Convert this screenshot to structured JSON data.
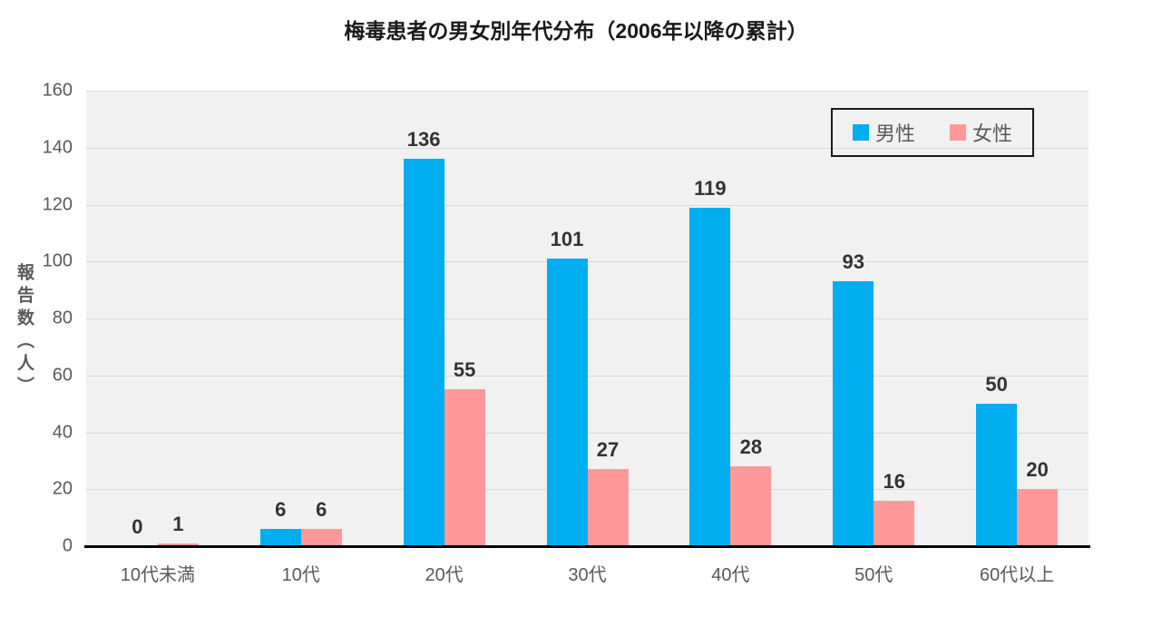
{
  "chart_data": {
    "type": "bar",
    "title": "梅毒患者の男女別年代分布（2006年以降の累計）",
    "ylabel": "報告数（人）",
    "xlabel": "",
    "categories": [
      "10代未満",
      "10代",
      "20代",
      "30代",
      "40代",
      "50代",
      "60代以上"
    ],
    "series": [
      {
        "key": "male",
        "name": "男性",
        "color": "#00aeef",
        "values": [
          0,
          6,
          136,
          101,
          119,
          93,
          50
        ]
      },
      {
        "key": "female",
        "name": "女性",
        "color": "#ff9999",
        "values": [
          1,
          6,
          55,
          27,
          28,
          16,
          20
        ]
      }
    ],
    "ylim": [
      0,
      160
    ],
    "yticks": [
      0,
      20,
      40,
      60,
      80,
      100,
      120,
      140,
      160
    ],
    "grid": true,
    "data_labels": true,
    "legend_position": "top-right"
  },
  "style_colors": {
    "plot_background": "#f1f1f1",
    "gridline": "#d9d9d9",
    "axis_line": "#000000",
    "tick_text": "#595959",
    "data_label_text": "#333333",
    "title_text": "#1a1a1a"
  }
}
